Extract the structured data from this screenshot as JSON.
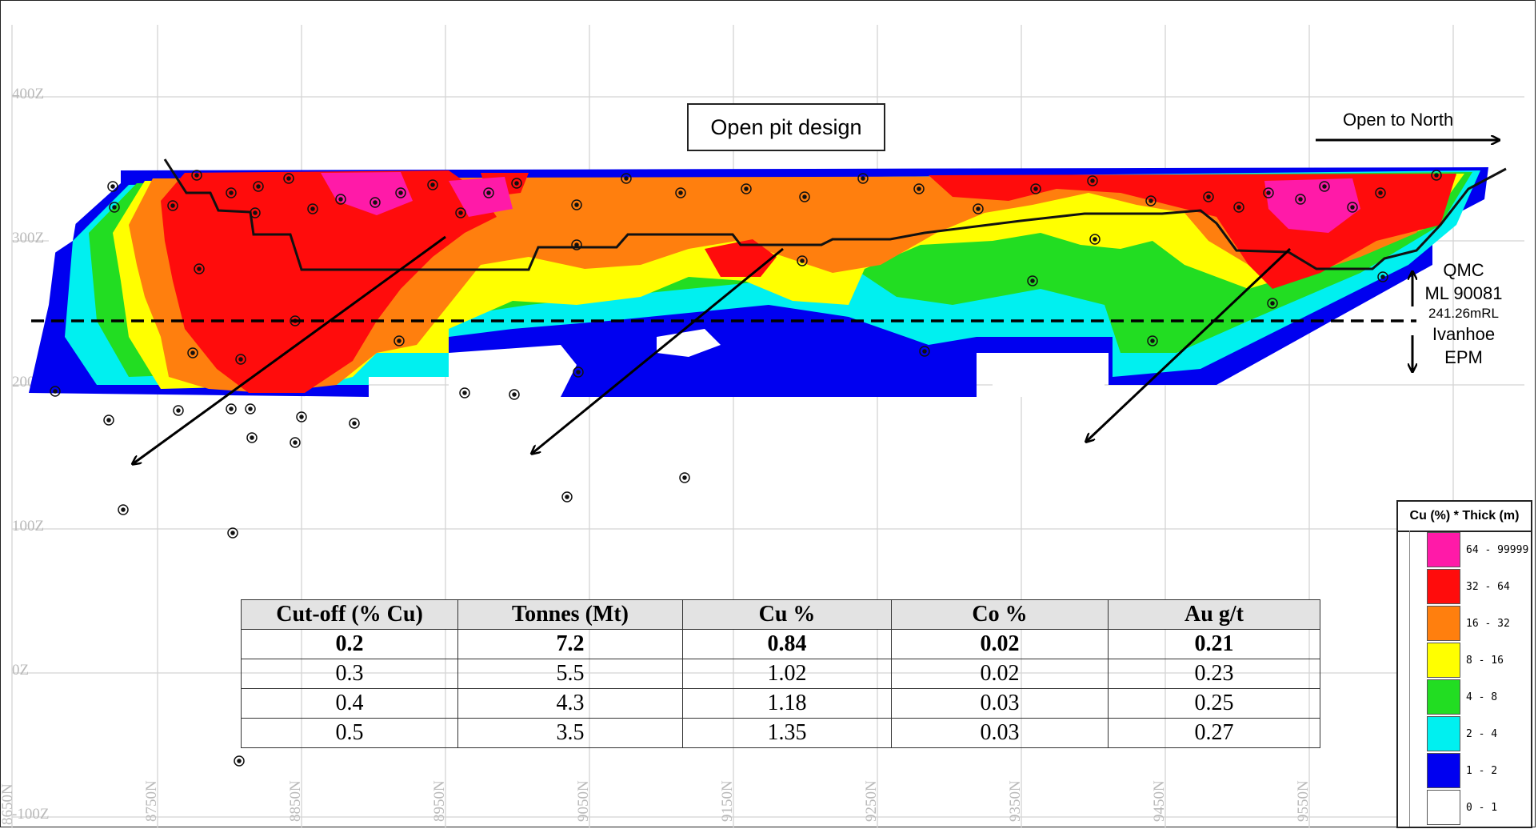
{
  "section": {
    "y_axis_labels": [
      "400Z",
      "300Z",
      "200Z",
      "100Z",
      "0Z",
      "-100Z"
    ],
    "x_axis_labels": [
      "8650N",
      "8750N",
      "8850N",
      "8950N",
      "9050N",
      "9150N",
      "9250N",
      "9350N",
      "9450N",
      "9550N"
    ],
    "pit_label": "Open pit design",
    "open_north_label": "Open to North",
    "boundary": {
      "upper_name_1": "QMC",
      "upper_name_2": "ML 90081",
      "rl_label": "241.26mRL",
      "lower_name_1": "Ivanhoe",
      "lower_name_2": "EPM"
    }
  },
  "grade_table": {
    "headers": [
      "Cut-off (% Cu)",
      "Tonnes (Mt)",
      "Cu %",
      "Co %",
      "Au g/t"
    ],
    "rows": [
      [
        "0.2",
        "7.2",
        "0.84",
        "0.02",
        "0.21"
      ],
      [
        "0.3",
        "5.5",
        "1.02",
        "0.02",
        "0.23"
      ],
      [
        "0.4",
        "4.3",
        "1.18",
        "0.03",
        "0.25"
      ],
      [
        "0.5",
        "3.5",
        "1.35",
        "0.03",
        "0.27"
      ]
    ],
    "bold_row_index": 0
  },
  "legend": {
    "title": "Cu (%) * Thick (m)",
    "items": [
      {
        "label": "64 - 99999",
        "color": "#ff1aa8"
      },
      {
        "label": "32 - 64",
        "color": "#ff0c0c"
      },
      {
        "label": "16 - 32",
        "color": "#ff7f0e"
      },
      {
        "label": "8 - 16",
        "color": "#ffff00"
      },
      {
        "label": "4 - 8",
        "color": "#22dd22"
      },
      {
        "label": "2 - 4",
        "color": "#00f0f0"
      },
      {
        "label": "1 - 2",
        "color": "#0000f0"
      },
      {
        "label": "0 - 1",
        "color": "#ffffff"
      }
    ]
  }
}
